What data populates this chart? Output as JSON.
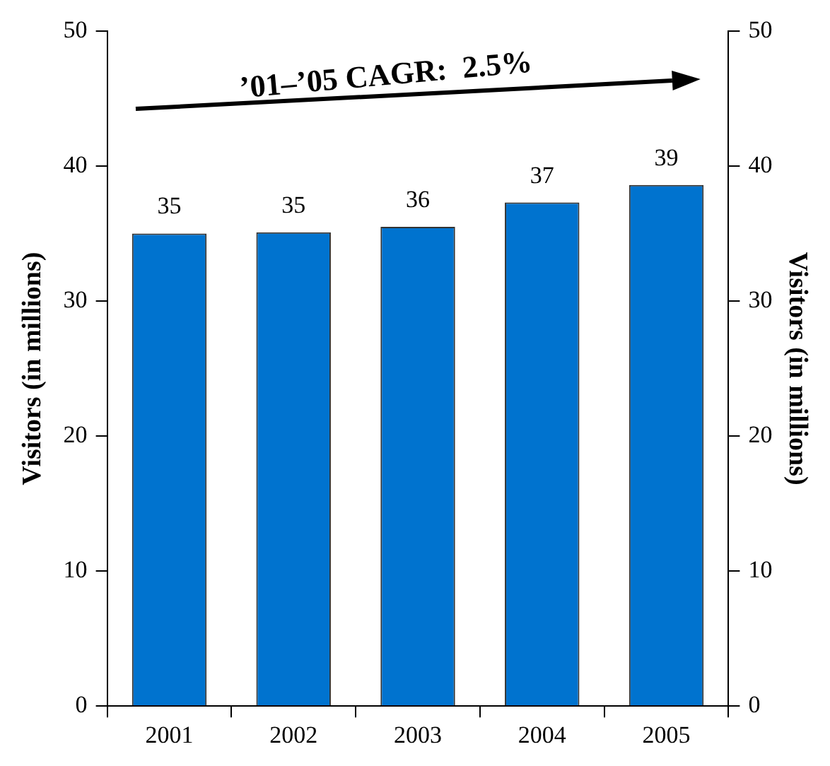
{
  "chart_data": {
    "type": "bar",
    "categories": [
      "2001",
      "2002",
      "2003",
      "2004",
      "2005"
    ],
    "values": [
      35.0,
      35.1,
      35.5,
      37.3,
      38.6
    ],
    "value_labels": [
      "35",
      "35",
      "36",
      "37",
      "39"
    ],
    "color": "#0073cf",
    "ylabel": "Visitors (in millions)",
    "y2label": "Visitors (in millions)",
    "ylim": [
      0,
      50
    ],
    "yticks": [
      0,
      10,
      20,
      30,
      40,
      50
    ],
    "y2lim": [
      0,
      50
    ],
    "y2ticks": [
      0,
      10,
      20,
      30,
      40,
      50
    ],
    "grid": false,
    "legend": false,
    "annotations": [
      "’01–’05 CAGR:  2.5%"
    ]
  }
}
